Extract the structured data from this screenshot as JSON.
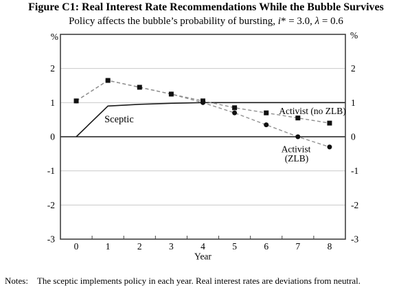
{
  "figure": {
    "title": "Figure C1: Real Interest Rate Recommendations While the Bubble Survives",
    "subtitle_prefix": "Policy affects the bubble’s probability of bursting, ",
    "subtitle_i": "i",
    "subtitle_mid": "* = 3.0, ",
    "subtitle_lambda": "λ",
    "subtitle_suffix": " = 0.6"
  },
  "chart_data": {
    "type": "line",
    "x": [
      0,
      1,
      2,
      3,
      4,
      5,
      6,
      7,
      8
    ],
    "xlabel": "Year",
    "unit_left": "%",
    "unit_right": "%",
    "ylim": [
      -3,
      3
    ],
    "yticks": [
      2,
      1,
      0,
      -1,
      -2,
      -3
    ],
    "grid": "horizontal",
    "legend_position": "inline-annotations",
    "series": [
      {
        "name": "Sceptic",
        "line": "solid",
        "marker": "none",
        "values": [
          0,
          0.9,
          0.95,
          0.98,
          1.0,
          1.0,
          1.0,
          1.0,
          1.0
        ],
        "extend_right": true
      },
      {
        "name": "Activist (no ZLB)",
        "line": "dashed",
        "marker": "square",
        "values": [
          1.05,
          1.65,
          1.45,
          1.25,
          1.05,
          0.85,
          0.7,
          0.55,
          0.4
        ]
      },
      {
        "name": "Activist (ZLB)",
        "line": "dashed",
        "marker": "circle",
        "values": [
          1.05,
          1.65,
          1.45,
          1.25,
          1.0,
          0.7,
          0.35,
          0.0,
          -0.3
        ]
      }
    ],
    "annotations": [
      {
        "text": "Sceptic",
        "x": 0.89,
        "y": 0.42,
        "anchor": "start",
        "size": 14.5
      },
      {
        "text": "Activist (no ZLB)",
        "x": 7.46,
        "y": 0.66,
        "anchor": "middle",
        "size": 13.5
      },
      {
        "text": "Activist",
        "x": 6.94,
        "y": -0.45,
        "anchor": "middle",
        "size": 13.5
      },
      {
        "text": "(ZLB)",
        "x": 6.96,
        "y": -0.72,
        "anchor": "middle",
        "size": 13.5
      }
    ],
    "colors": {
      "line_dark": "#1a1a1a",
      "line_dashed": "#8f8f8f",
      "marker": "#111111",
      "grid": "#c9c9c9",
      "border": "#404040",
      "zero_line": "#1a1a1a",
      "text": "#000000"
    }
  },
  "notes": {
    "label": "Notes:",
    "text": "The sceptic implements policy in each year. Real interest rates are deviations from neutral."
  }
}
